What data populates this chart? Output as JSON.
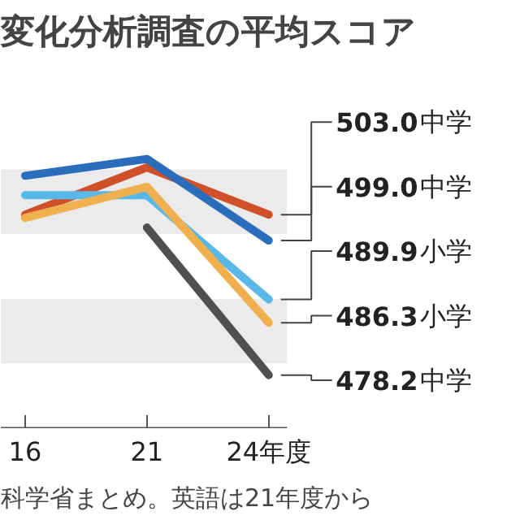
{
  "chart_data": {
    "type": "line",
    "title": "変化分析調査の平均スコア",
    "categories": [
      "16",
      "21",
      "24年度"
    ],
    "series": [
      {
        "name": "中学",
        "color": "#d0502a",
        "values": [
          503.0,
          510.3,
          503.0
        ],
        "value_labels": [
          null,
          null,
          "503.0"
        ]
      },
      {
        "name": "中学",
        "color": "#2a6ebb",
        "values": [
          509.0,
          511.6,
          499.0
        ],
        "value_labels": [
          null,
          null,
          "499.0"
        ]
      },
      {
        "name": "小学",
        "color": "#5ab8e8",
        "values": [
          506.0,
          506.0,
          489.9
        ],
        "value_labels": [
          null,
          null,
          "489.9"
        ]
      },
      {
        "name": "小学",
        "color": "#f0b050",
        "values": [
          502.5,
          507.3,
          486.3
        ],
        "value_labels": [
          null,
          null,
          "486.3"
        ]
      },
      {
        "name": "中学",
        "color": "#505050",
        "values": [
          null,
          501.0,
          478.2
        ],
        "value_labels": [
          null,
          null,
          "478.2"
        ]
      }
    ],
    "tick_labels": "x",
    "bands": [
      {
        "axis": "y",
        "from": 500,
        "to": 510,
        "color": "#ebebeb"
      },
      {
        "axis": "y",
        "from": 480,
        "to": 490,
        "color": "#ebebeb"
      }
    ],
    "annotations": [
      "科学省まとめ。英語は21年度から"
    ]
  }
}
